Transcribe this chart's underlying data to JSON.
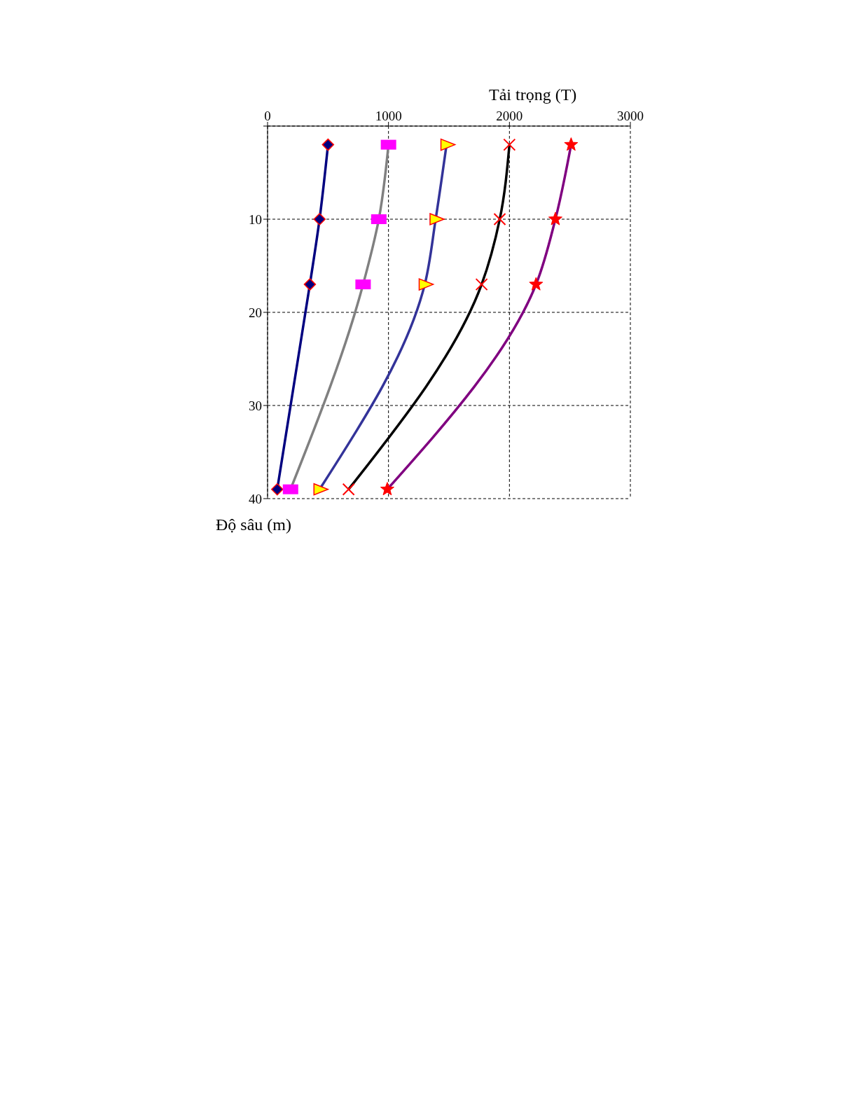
{
  "chart_data": {
    "type": "line",
    "xlabel": "Tải trọng (T)",
    "ylabel": "Độ sâu (m)",
    "xlim": [
      0,
      3000
    ],
    "xticks": [
      0,
      1000,
      2000,
      3000
    ],
    "ylim": [
      40,
      0
    ],
    "yticks": [
      {
        "value": 0,
        "label": null
      },
      10,
      20,
      30,
      40
    ],
    "grid": true,
    "series": [
      {
        "color": "#000080",
        "marker": "diamond",
        "colors": [
          "#000080",
          "#000080",
          "#000080",
          "#000080"
        ],
        "x": [
          500,
          430,
          350,
          80
        ],
        "values": [
          2,
          10,
          17,
          39
        ]
      },
      {
        "color": "#808080",
        "marker": "square",
        "colors": [
          "#ff00ff",
          "#ff00ff",
          "#ff00ff",
          "#ff00ff"
        ],
        "x": [
          1000,
          920,
          790,
          190
        ],
        "values": [
          2,
          10,
          17,
          39
        ]
      },
      {
        "color": "#333399",
        "marker": "triangle",
        "colors": [
          "#ffff00",
          "#ffff00",
          "#ffff00",
          "#ffff00"
        ],
        "x": [
          1480,
          1390,
          1300,
          430
        ],
        "values": [
          2,
          10,
          17,
          39
        ]
      },
      {
        "color": "#000000",
        "marker": "cross",
        "colors": [
          "#ff0000",
          "#ff0000",
          "#ff0000",
          "#ff0000"
        ],
        "x": [
          2000,
          1920,
          1770,
          670
        ],
        "values": [
          2,
          10,
          17,
          39
        ]
      },
      {
        "color": "#800080",
        "marker": "star",
        "colors": [
          "#ff0000",
          "#ff0000",
          "#ff0000",
          "#ff0000"
        ],
        "x": [
          2510,
          2380,
          2220,
          990
        ],
        "values": [
          2,
          10,
          17,
          39
        ]
      }
    ]
  }
}
